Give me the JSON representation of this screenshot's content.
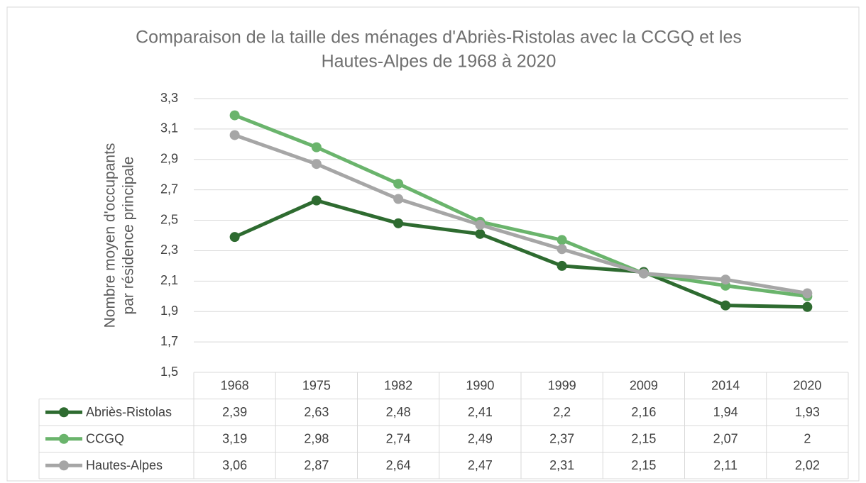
{
  "chart_data": {
    "type": "line",
    "title": [
      "Comparaison de la taille des ménages d'Abriès-Ristolas avec la CCGQ  et les",
      "Hautes-Alpes de 1968 à 2020"
    ],
    "ylabel": [
      "Nombre moyen d'occupants",
      "par résidence principale"
    ],
    "categories": [
      "1968",
      "1975",
      "1982",
      "1990",
      "1999",
      "2009",
      "2014",
      "2020"
    ],
    "series": [
      {
        "name": "Abriès-Ristolas",
        "color": "#2e6b30",
        "values": [
          2.39,
          2.63,
          2.48,
          2.41,
          2.2,
          2.16,
          1.94,
          1.93
        ],
        "value_labels": [
          "2,39",
          "2,63",
          "2,48",
          "2,41",
          "2,2",
          "2,16",
          "1,94",
          "1,93"
        ]
      },
      {
        "name": "CCGQ",
        "color": "#6ab46c",
        "values": [
          3.19,
          2.98,
          2.74,
          2.49,
          2.37,
          2.15,
          2.07,
          2
        ],
        "value_labels": [
          "3,19",
          "2,98",
          "2,74",
          "2,49",
          "2,37",
          "2,15",
          "2,07",
          "2"
        ]
      },
      {
        "name": "Hautes-Alpes",
        "color": "#a6a6a6",
        "values": [
          3.06,
          2.87,
          2.64,
          2.47,
          2.31,
          2.15,
          2.11,
          2.02
        ],
        "value_labels": [
          "3,06",
          "2,87",
          "2,64",
          "2,47",
          "2,31",
          "2,15",
          "2,11",
          "2,02"
        ]
      }
    ],
    "ylim": [
      1.5,
      3.3
    ],
    "yticks": [
      {
        "value": 1.5,
        "label": "1,5"
      },
      {
        "value": 1.7,
        "label": "1,7"
      },
      {
        "value": 1.9,
        "label": "1,9"
      },
      {
        "value": 2.1,
        "label": "2,1"
      },
      {
        "value": 2.3,
        "label": "2,3"
      },
      {
        "value": 2.5,
        "label": "2,5"
      },
      {
        "value": 2.7,
        "label": "2,7"
      },
      {
        "value": 2.9,
        "label": "2,9"
      },
      {
        "value": 3.1,
        "label": "3,1"
      },
      {
        "value": 3.3,
        "label": "3,3"
      }
    ],
    "grid": true,
    "legend": "table"
  }
}
